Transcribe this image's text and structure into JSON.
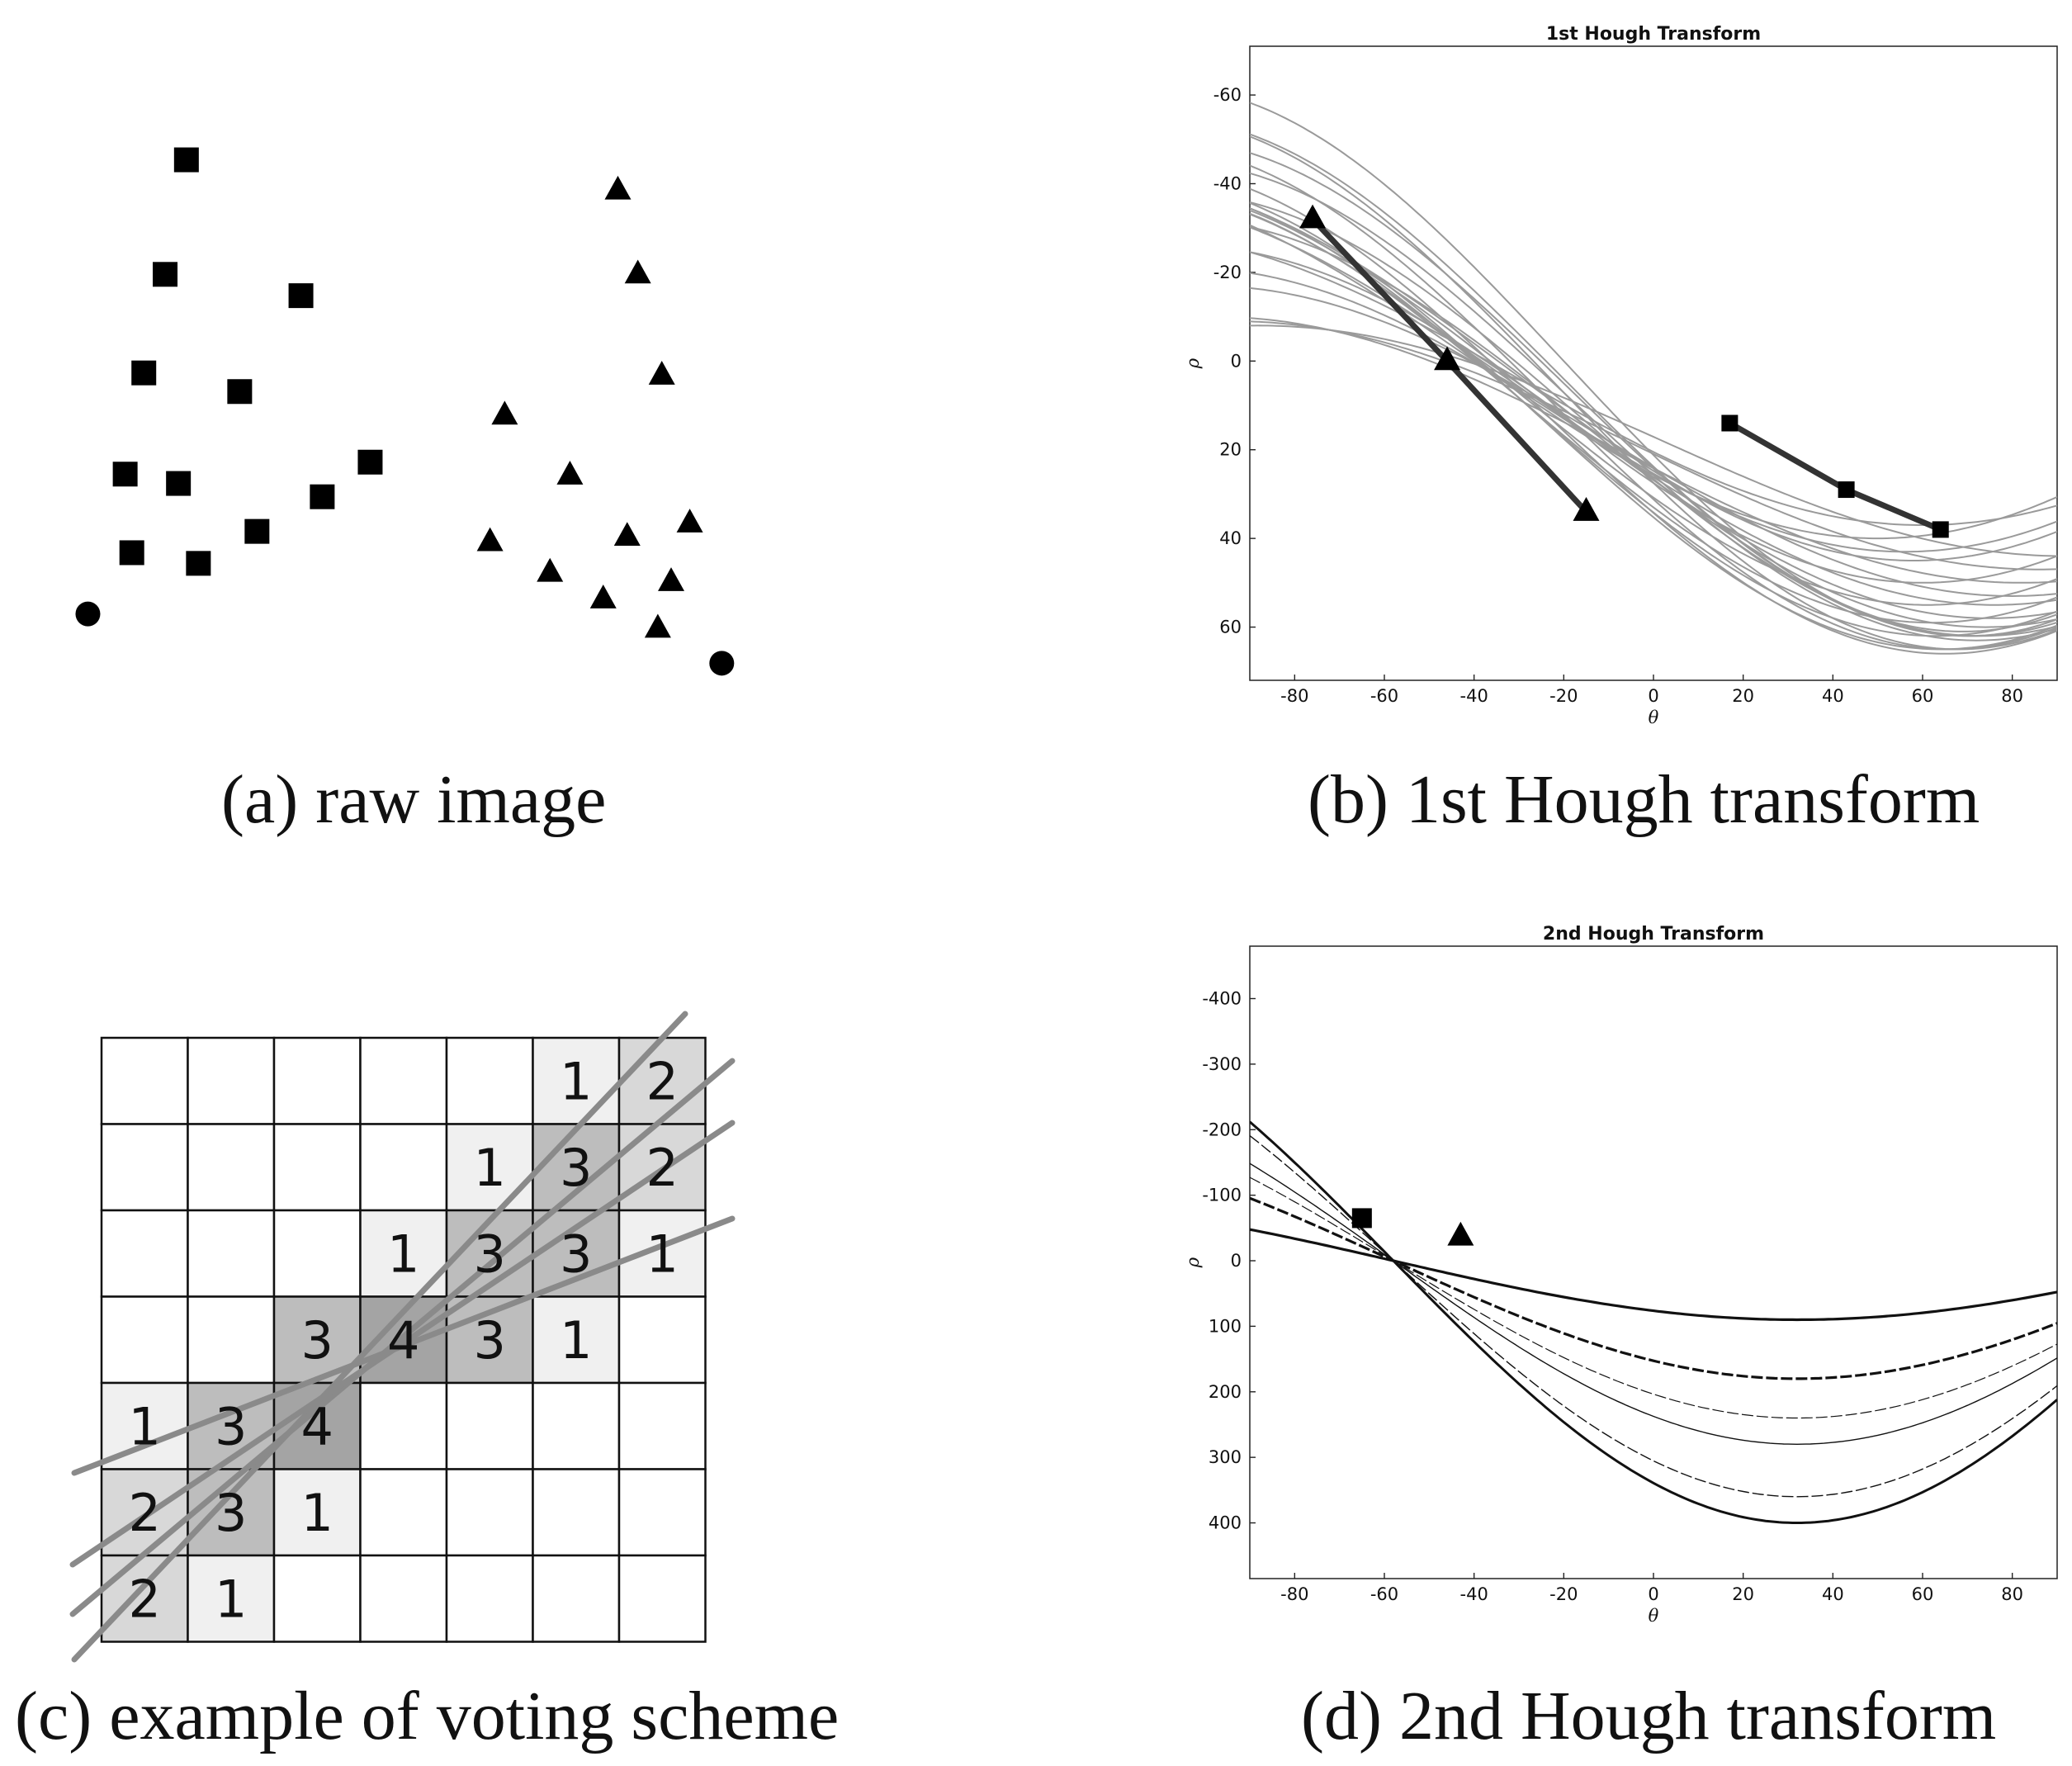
{
  "panels": {
    "a": {
      "caption": "(a) raw image"
    },
    "b": {
      "caption": "(b) 1st Hough transform"
    },
    "c": {
      "caption": "(c) example of voting scheme"
    },
    "d": {
      "caption": "(d) 2nd Hough transform"
    }
  },
  "raw_image": {
    "squares": [
      [
        140,
        120
      ],
      [
        124,
        206
      ],
      [
        226,
        222
      ],
      [
        108,
        280
      ],
      [
        180,
        294
      ],
      [
        94,
        356
      ],
      [
        134,
        363
      ],
      [
        278,
        347
      ],
      [
        242,
        373
      ],
      [
        99,
        415
      ],
      [
        149,
        423
      ],
      [
        193,
        399
      ]
    ],
    "triangles": [
      [
        464,
        143
      ],
      [
        479,
        206
      ],
      [
        497,
        282
      ],
      [
        379,
        312
      ],
      [
        428,
        357
      ],
      [
        368,
        407
      ],
      [
        471,
        403
      ],
      [
        518,
        393
      ],
      [
        413,
        430
      ],
      [
        504,
        437
      ],
      [
        453,
        450
      ],
      [
        494,
        472
      ]
    ],
    "circles": [
      [
        66,
        461
      ],
      [
        542,
        498
      ]
    ]
  },
  "voting_grid": {
    "rows": 7,
    "cols": 7,
    "cells": [
      [
        "",
        "",
        "",
        "",
        "",
        "1",
        "2"
      ],
      [
        "",
        "",
        "",
        "",
        "1",
        "3",
        "2"
      ],
      [
        "",
        "",
        "",
        "1",
        "3",
        "3",
        "1"
      ],
      [
        "",
        "",
        "3",
        "4",
        "3",
        "1",
        ""
      ],
      [
        "1",
        "3",
        "4",
        "",
        "",
        "",
        ""
      ],
      [
        "2",
        "3",
        "1",
        "",
        "",
        "",
        ""
      ],
      [
        "2",
        "1",
        "",
        "",
        "",
        "",
        ""
      ]
    ],
    "shade_colors": {
      "0": "#ffffff",
      "1": "#f0f0f0",
      "2": "#d8d8d8",
      "3": "#bdbdbd",
      "4": "#a4a4a4"
    },
    "line_color": "#8a8a8a"
  },
  "chart_data": [
    {
      "type": "line",
      "title": "1st Hough Transform",
      "xlabel": "θ",
      "ylabel": "ρ",
      "xlim": [
        -90,
        90
      ],
      "ylim": [
        -71,
        72
      ],
      "y_inverted": true,
      "xticks": [
        "-80",
        "-60",
        "-40",
        "-20",
        "0",
        "20",
        "40",
        "60",
        "80"
      ],
      "yticks": [
        "-60",
        "-40",
        "-20",
        "0",
        "20",
        "40",
        "60"
      ],
      "curve_color": "#9a9a9a",
      "curves": [
        {
          "a": 40,
          "phi": -40,
          "c": 0
        },
        {
          "a": 40,
          "phi": -34,
          "c": 3
        },
        {
          "a": 43,
          "phi": -32,
          "c": 2
        },
        {
          "a": 45,
          "phi": -30,
          "c": 5
        },
        {
          "a": 47,
          "phi": -29,
          "c": 8
        },
        {
          "a": 49,
          "phi": -28,
          "c": 10
        },
        {
          "a": 51,
          "phi": -27,
          "c": 11
        },
        {
          "a": 53,
          "phi": -26,
          "c": 12
        },
        {
          "a": 55,
          "phi": -25,
          "c": 11
        },
        {
          "a": 57,
          "phi": -24,
          "c": 8
        },
        {
          "a": 60,
          "phi": -22,
          "c": 5
        },
        {
          "a": 62,
          "phi": -20,
          "c": 0
        },
        {
          "a": 58,
          "phi": -21,
          "c": 3
        },
        {
          "a": 56,
          "phi": -19,
          "c": 6
        },
        {
          "a": 54,
          "phi": -18,
          "c": 9
        },
        {
          "a": 50,
          "phi": -17,
          "c": 12
        },
        {
          "a": 46,
          "phi": -16,
          "c": 14
        },
        {
          "a": 42,
          "phi": -15,
          "c": 16
        },
        {
          "a": 38,
          "phi": -14,
          "c": 17
        },
        {
          "a": 35,
          "phi": -10,
          "c": 18
        },
        {
          "a": 30,
          "phi": -8,
          "c": 20
        },
        {
          "a": 28,
          "phi": -4,
          "c": 19
        },
        {
          "a": 26,
          "phi": 2,
          "c": 18
        },
        {
          "a": 33,
          "phi": -30,
          "c": 4
        }
      ],
      "highlight_series": [
        {
          "name": "triangles",
          "marker": "triangle",
          "points": [
            [
              -76,
              -32
            ],
            [
              -46,
              0
            ],
            [
              -15,
              34
            ]
          ]
        },
        {
          "name": "squares",
          "marker": "square",
          "points": [
            [
              17,
              14
            ],
            [
              43,
              29
            ],
            [
              64,
              38
            ]
          ]
        }
      ]
    },
    {
      "type": "line",
      "title": "2nd Hough Transform",
      "xlabel": "θ",
      "ylabel": "ρ",
      "xlim": [
        -90,
        90
      ],
      "ylim": [
        -480,
        485
      ],
      "y_inverted": true,
      "xticks": [
        "-80",
        "-60",
        "-40",
        "-20",
        "0",
        "20",
        "40",
        "60",
        "80"
      ],
      "yticks": [
        "-400",
        "-300",
        "-200",
        "-100",
        "0",
        "100",
        "200",
        "300",
        "400"
      ],
      "curve_color": "#111111",
      "curves": [
        {
          "a": 90,
          "phi": 0,
          "c": 0,
          "w": 3.2
        },
        {
          "a": 180,
          "phi": 0,
          "c": 0,
          "w": 3.2
        },
        {
          "a": 280,
          "phi": 0,
          "c": 0,
          "w": 1.4
        },
        {
          "a": 360,
          "phi": 0,
          "c": 0,
          "w": 1.4
        },
        {
          "a": 400,
          "phi": 0,
          "c": 0,
          "w": 3.0
        },
        {
          "a": 240,
          "phi": 0,
          "c": 0,
          "w": 1.2
        }
      ],
      "curve_fn": "rho = a*cos(theta - 32deg) + c",
      "highlight_points": [
        {
          "name": "square",
          "marker": "square",
          "x": -65,
          "y": -65
        },
        {
          "name": "triangle",
          "marker": "triangle",
          "x": -43,
          "y": -37
        }
      ]
    }
  ]
}
